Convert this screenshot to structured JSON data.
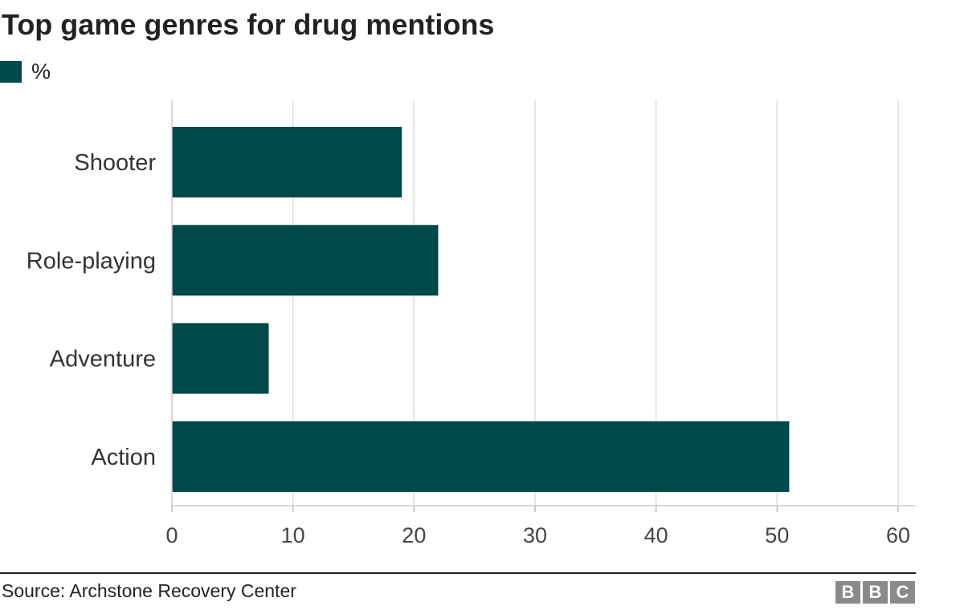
{
  "chart_data": {
    "type": "bar",
    "orientation": "horizontal",
    "title": "Top game genres for drug mentions",
    "legend": {
      "label": "%",
      "placement": "top-left"
    },
    "categories": [
      "Shooter",
      "Role-playing",
      "Adventure",
      "Action"
    ],
    "values": [
      19,
      22,
      8,
      51
    ],
    "xlim": [
      0,
      60
    ],
    "xticks": [
      0,
      10,
      20,
      30,
      40,
      50,
      60
    ],
    "grid": true,
    "bar_color": "#004949",
    "grid_color": "#dddddd"
  },
  "footer": {
    "source": "Source: Archstone Recovery Center",
    "logo_letters": [
      "B",
      "B",
      "C"
    ]
  }
}
